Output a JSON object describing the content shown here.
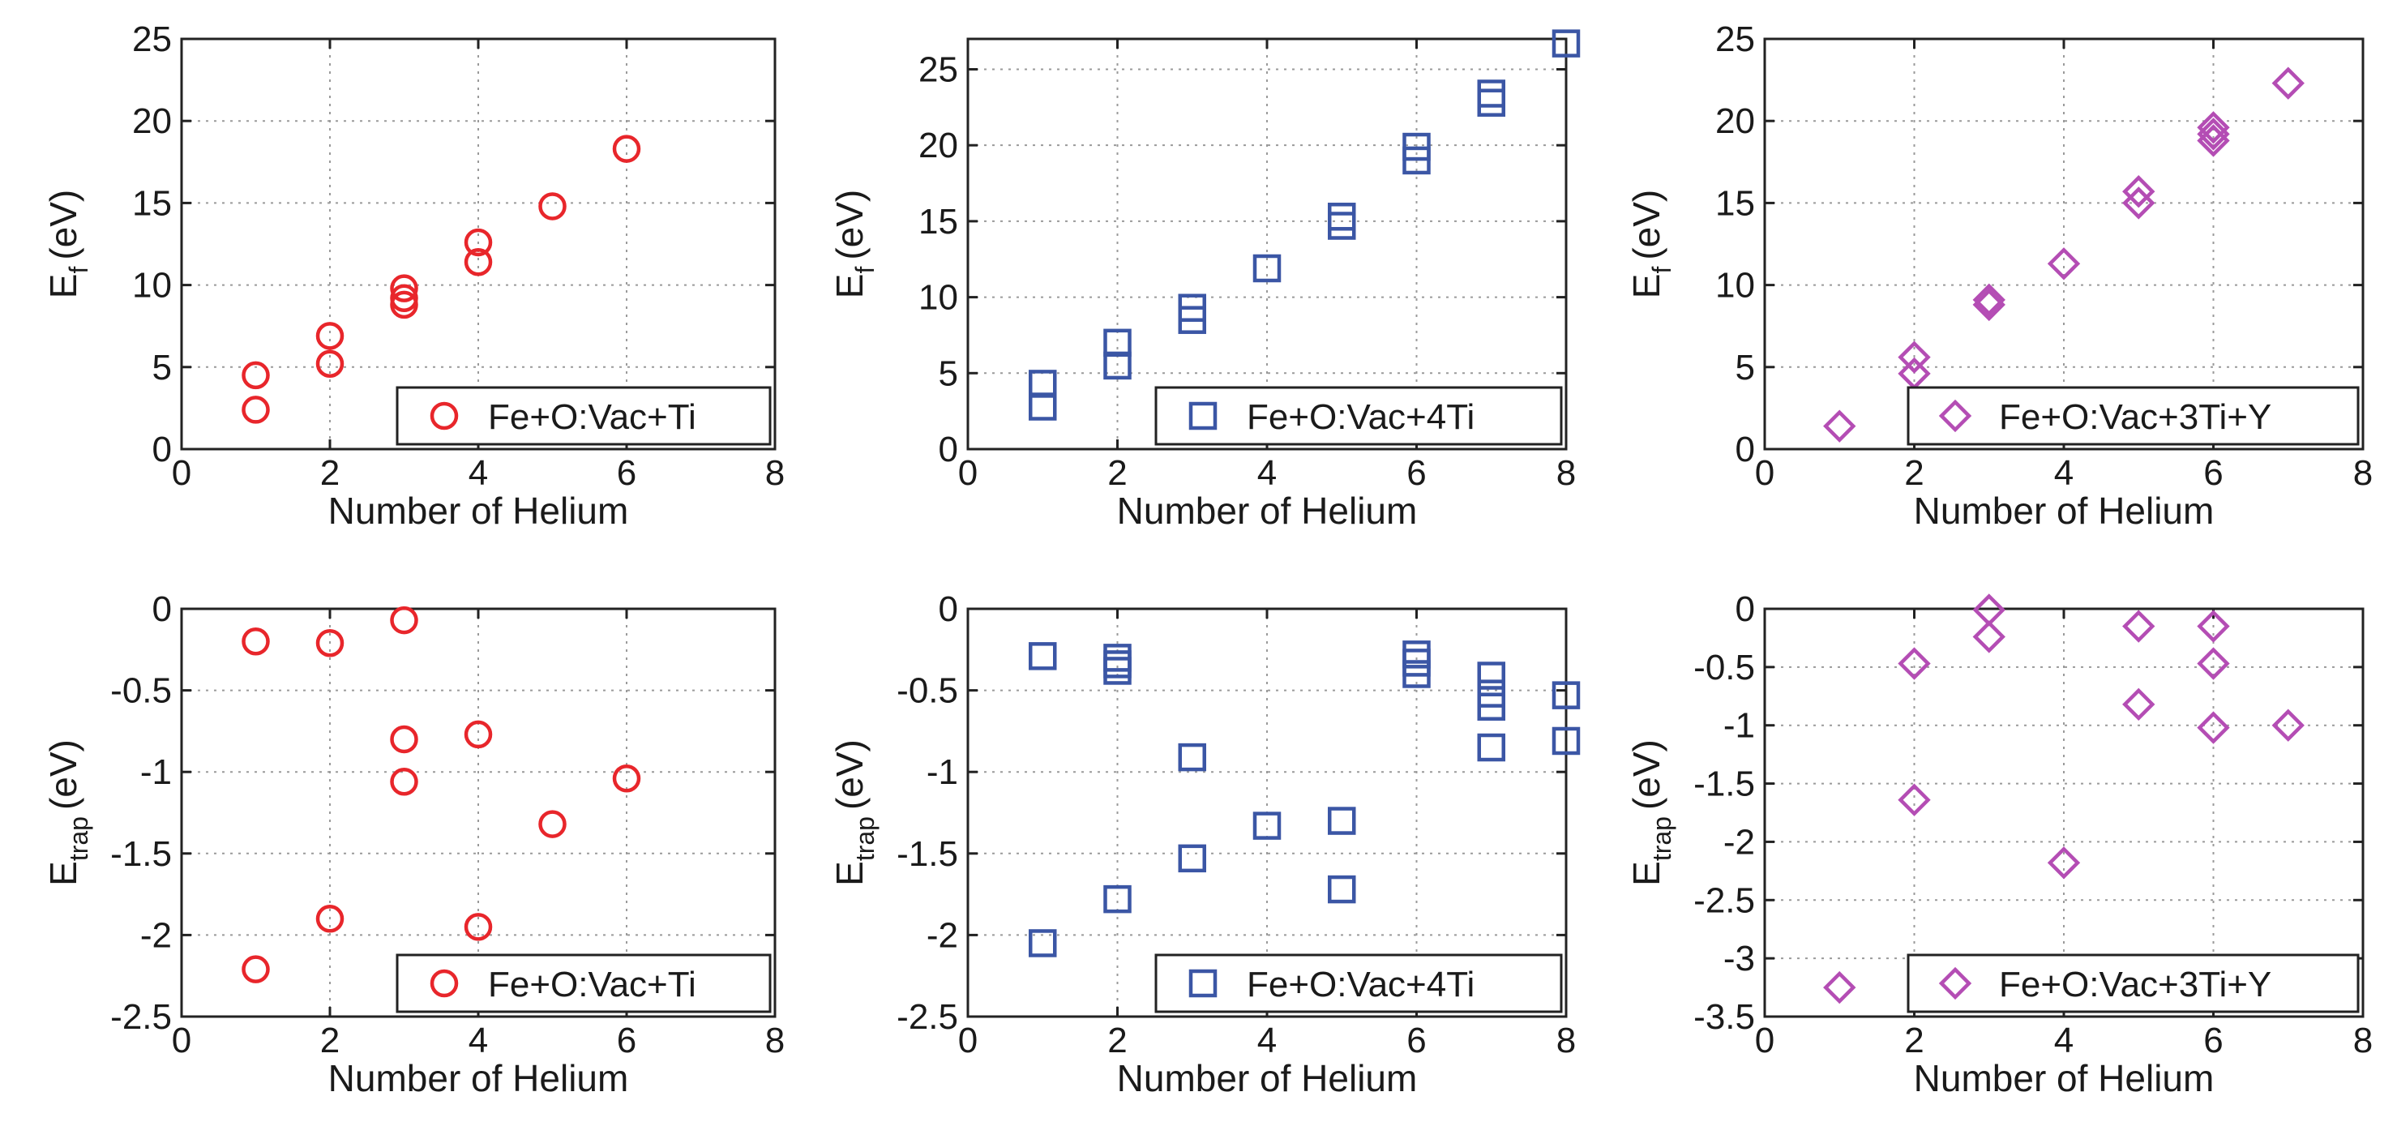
{
  "chart_data": [
    {
      "type": "scatter",
      "series_name": "Fe+O:Vac+Ti",
      "marker": "circle",
      "color": "#e8262b",
      "xlabel": "Number of Helium",
      "ylabel_main": "E",
      "ylabel_sub": "f",
      "ylabel_unit": "(eV)",
      "xlim": [
        0,
        8
      ],
      "ylim": [
        0,
        25
      ],
      "xticks": [
        0,
        2,
        4,
        6,
        8
      ],
      "yticks": [
        0,
        5,
        10,
        15,
        20,
        25
      ],
      "xtick_labels": [
        "0",
        "2",
        "4",
        "6",
        "8"
      ],
      "ytick_labels": [
        "0",
        "5",
        "10",
        "15",
        "20",
        "25"
      ],
      "grid": true,
      "legend_position": "bottom-right",
      "x": [
        1,
        1,
        2,
        2,
        3,
        3,
        3,
        4,
        4,
        5,
        6
      ],
      "y": [
        2.4,
        4.5,
        5.2,
        6.9,
        8.8,
        9.2,
        9.8,
        11.4,
        12.6,
        14.8,
        18.3
      ]
    },
    {
      "type": "scatter",
      "series_name": "Fe+O:Vac+4Ti",
      "marker": "square",
      "color": "#3b56a5",
      "xlabel": "Number of Helium",
      "ylabel_main": "E",
      "ylabel_sub": "f",
      "ylabel_unit": "(eV)",
      "xlim": [
        0,
        8
      ],
      "ylim": [
        0,
        27
      ],
      "xticks": [
        0,
        2,
        4,
        6,
        8
      ],
      "yticks": [
        0,
        5,
        10,
        15,
        20,
        25
      ],
      "xtick_labels": [
        "0",
        "2",
        "4",
        "6",
        "8"
      ],
      "ytick_labels": [
        "0",
        "5",
        "10",
        "15",
        "20",
        "25"
      ],
      "grid": true,
      "legend_position": "bottom-right",
      "x": [
        1,
        1,
        2,
        2,
        3,
        3,
        4,
        5,
        5,
        6,
        6,
        7,
        7,
        8
      ],
      "y": [
        2.8,
        4.3,
        5.5,
        7.0,
        8.5,
        9.3,
        11.9,
        14.7,
        15.3,
        19.0,
        19.9,
        22.8,
        23.4,
        26.7
      ]
    },
    {
      "type": "scatter",
      "series_name": "Fe+O:Vac+3Ti+Y",
      "marker": "diamond",
      "color": "#b44db4",
      "xlabel": "Number of Helium",
      "ylabel_main": "E",
      "ylabel_sub": "f",
      "ylabel_unit": "(eV)",
      "xlim": [
        0,
        8
      ],
      "ylim": [
        0,
        25
      ],
      "xticks": [
        0,
        2,
        4,
        6,
        8
      ],
      "yticks": [
        0,
        5,
        10,
        15,
        20,
        25
      ],
      "xtick_labels": [
        "0",
        "2",
        "4",
        "6",
        "8"
      ],
      "ytick_labels": [
        "0",
        "5",
        "10",
        "15",
        "20",
        "25"
      ],
      "grid": true,
      "legend_position": "bottom-right",
      "x": [
        1,
        2,
        2,
        3,
        3,
        4,
        5,
        5,
        6,
        6,
        6,
        7
      ],
      "y": [
        1.4,
        4.6,
        5.6,
        8.8,
        9.1,
        11.3,
        15.0,
        15.7,
        18.8,
        19.2,
        19.6,
        22.3
      ]
    },
    {
      "type": "scatter",
      "series_name": "Fe+O:Vac+Ti",
      "marker": "circle",
      "color": "#e8262b",
      "xlabel": "Number of Helium",
      "ylabel_main": "E",
      "ylabel_sub": "trap",
      "ylabel_unit": "(eV)",
      "xlim": [
        0,
        8
      ],
      "ylim": [
        -2.5,
        0
      ],
      "xticks": [
        0,
        2,
        4,
        6,
        8
      ],
      "yticks": [
        -2.5,
        -2,
        -1.5,
        -1,
        -0.5,
        0
      ],
      "xtick_labels": [
        "0",
        "2",
        "4",
        "6",
        "8"
      ],
      "ytick_labels": [
        "-2.5",
        "-2",
        "-1.5",
        "-1",
        "-0.5",
        "0"
      ],
      "grid": true,
      "legend_position": "bottom-right",
      "x": [
        1,
        1,
        2,
        2,
        3,
        3,
        3,
        4,
        4,
        5,
        6
      ],
      "y": [
        -0.2,
        -2.21,
        -0.21,
        -1.9,
        -0.07,
        -0.8,
        -1.06,
        -0.77,
        -1.95,
        -1.32,
        -1.04
      ]
    },
    {
      "type": "scatter",
      "series_name": "Fe+O:Vac+4Ti",
      "marker": "square",
      "color": "#3b56a5",
      "xlabel": "Number of Helium",
      "ylabel_main": "E",
      "ylabel_sub": "trap",
      "ylabel_unit": "(eV)",
      "xlim": [
        0,
        8
      ],
      "ylim": [
        -2.5,
        0
      ],
      "xticks": [
        0,
        2,
        4,
        6,
        8
      ],
      "yticks": [
        -2.5,
        -2,
        -1.5,
        -1,
        -0.5,
        0
      ],
      "xtick_labels": [
        "0",
        "2",
        "4",
        "6",
        "8"
      ],
      "ytick_labels": [
        "-2.5",
        "-2",
        "-1.5",
        "-1",
        "-0.5",
        "0"
      ],
      "grid": true,
      "legend_position": "bottom-right",
      "x": [
        1,
        1,
        2,
        2,
        2,
        2,
        3,
        3,
        4,
        5,
        5,
        6,
        6,
        6,
        7,
        7,
        7,
        7,
        8,
        8
      ],
      "y": [
        -0.29,
        -2.05,
        -0.3,
        -0.34,
        -0.38,
        -1.78,
        -0.91,
        -1.53,
        -1.33,
        -1.3,
        -1.72,
        -0.28,
        -0.33,
        -0.4,
        -0.41,
        -0.52,
        -0.6,
        -0.85,
        -0.53,
        -0.81
      ]
    },
    {
      "type": "scatter",
      "series_name": "Fe+O:Vac+3Ti+Y",
      "marker": "diamond",
      "color": "#b44db4",
      "xlabel": "Number of Helium",
      "ylabel_main": "E",
      "ylabel_sub": "trap",
      "ylabel_unit": "(eV)",
      "xlim": [
        0,
        8
      ],
      "ylim": [
        -3.5,
        0
      ],
      "xticks": [
        0,
        2,
        4,
        6,
        8
      ],
      "yticks": [
        -3.5,
        -3,
        -2.5,
        -2,
        -1.5,
        -1,
        -0.5,
        0
      ],
      "xtick_labels": [
        "0",
        "2",
        "4",
        "6",
        "8"
      ],
      "ytick_labels": [
        "-3.5",
        "-3",
        "-2.5",
        "-2",
        "-1.5",
        "-1",
        "-0.5",
        "0"
      ],
      "grid": true,
      "legend_position": "bottom-right",
      "x": [
        1,
        2,
        2,
        3,
        3,
        4,
        5,
        5,
        6,
        6,
        6,
        7
      ],
      "y": [
        -3.25,
        -0.47,
        -1.64,
        -0.01,
        -0.24,
        -2.18,
        -0.15,
        -0.82,
        -0.15,
        -0.47,
        -1.02,
        -1.0
      ]
    }
  ]
}
